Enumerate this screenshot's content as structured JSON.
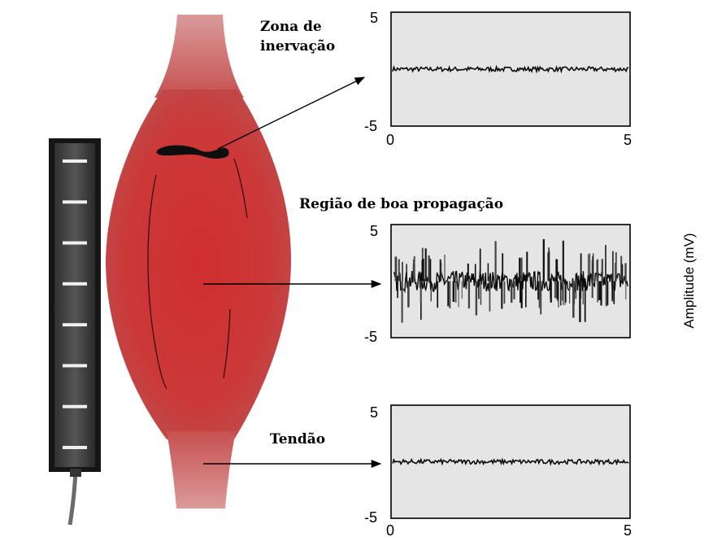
{
  "labels": {
    "innervation_zone_line1": "Zona de",
    "innervation_zone_line2": "inervação",
    "good_propagation": "Região de boa propagação",
    "tendon": "Tendão",
    "y_axis": "Amplitude (mV)"
  },
  "colors": {
    "muscle_core": "#cc3434",
    "muscle_edge": "#c24848",
    "tendon": "#d98a8a",
    "plot_bg": "#e5e5e5",
    "electrode_bar": "#1a1a1a",
    "electrode_strip": "#d6d6d6"
  },
  "electrode": {
    "contacts": 8
  },
  "chart_data": [
    {
      "type": "line",
      "name": "innervation-zone",
      "x_ticks": [
        "0",
        "5"
      ],
      "y_ticks": [
        "5",
        "-5"
      ],
      "xlim": [
        0,
        5
      ],
      "ylim": [
        -5,
        5
      ],
      "signal_amplitude_mv": 0.2
    },
    {
      "type": "line",
      "name": "good-propagation",
      "x_ticks": [],
      "y_ticks": [
        "5",
        "-5"
      ],
      "xlim": [
        0,
        5
      ],
      "ylim": [
        -5,
        5
      ],
      "signal_amplitude_mv": 3.3
    },
    {
      "type": "line",
      "name": "tendon",
      "x_ticks": [
        "0",
        "5"
      ],
      "y_ticks": [
        "5",
        "-5"
      ],
      "xlim": [
        0,
        5
      ],
      "ylim": [
        -5,
        5
      ],
      "signal_amplitude_mv": 0.2
    }
  ]
}
